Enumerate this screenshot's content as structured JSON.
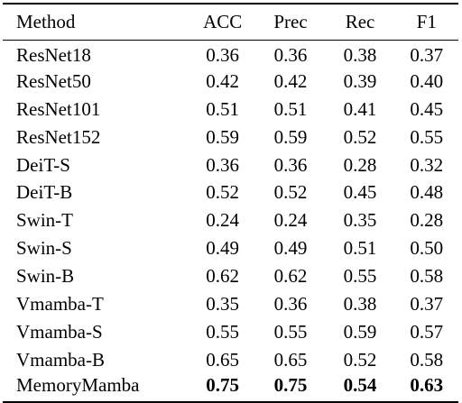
{
  "table": {
    "headers": [
      "Method",
      "ACC",
      "Prec",
      "Rec",
      "F1"
    ],
    "rows": [
      {
        "method": "ResNet18",
        "acc": "0.36",
        "prec": "0.36",
        "rec": "0.38",
        "f1": "0.37"
      },
      {
        "method": "ResNet50",
        "acc": "0.42",
        "prec": "0.42",
        "rec": "0.39",
        "f1": "0.40"
      },
      {
        "method": "ResNet101",
        "acc": "0.51",
        "prec": "0.51",
        "rec": "0.41",
        "f1": "0.45"
      },
      {
        "method": "ResNet152",
        "acc": "0.59",
        "prec": "0.59",
        "rec": "0.52",
        "f1": "0.55"
      },
      {
        "method": "DeiT-S",
        "acc": "0.36",
        "prec": "0.36",
        "rec": "0.28",
        "f1": "0.32"
      },
      {
        "method": "DeiT-B",
        "acc": "0.52",
        "prec": "0.52",
        "rec": "0.45",
        "f1": "0.48"
      },
      {
        "method": "Swin-T",
        "acc": "0.24",
        "prec": "0.24",
        "rec": "0.35",
        "f1": "0.28"
      },
      {
        "method": "Swin-S",
        "acc": "0.49",
        "prec": "0.49",
        "rec": "0.51",
        "f1": "0.50"
      },
      {
        "method": "Swin-B",
        "acc": "0.62",
        "prec": "0.62",
        "rec": "0.55",
        "f1": "0.58"
      },
      {
        "method": "Vmamba-T",
        "acc": "0.35",
        "prec": "0.36",
        "rec": "0.38",
        "f1": "0.37"
      },
      {
        "method": "Vmamba-S",
        "acc": "0.55",
        "prec": "0.55",
        "rec": "0.59",
        "f1": "0.57"
      },
      {
        "method": "Vmamba-B",
        "acc": "0.65",
        "prec": "0.65",
        "rec": "0.52",
        "f1": "0.58"
      },
      {
        "method": "MemoryMamba",
        "acc": "0.75",
        "prec": "0.75",
        "rec": "0.54",
        "f1": "0.63"
      }
    ]
  }
}
